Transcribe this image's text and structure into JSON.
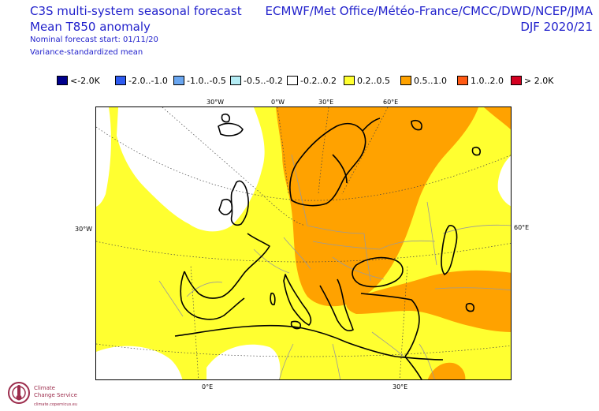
{
  "header": {
    "title": "C3S multi-system seasonal forecast",
    "variable": "Mean T850 anomaly",
    "start": "Nominal forecast start: 01/11/20",
    "method": "Variance-standardized mean",
    "systems": "ECMWF/Met Office/Météo-France/CMCC/DWD/NCEP/JMA",
    "season": "DJF 2020/21"
  },
  "legend": [
    {
      "label": "<-2.0K",
      "color": "#00008c"
    },
    {
      "label": "-2.0..-1.0",
      "color": "#2e5bf0"
    },
    {
      "label": "-1.0..-0.5",
      "color": "#6aa6f0"
    },
    {
      "label": "-0.5..-0.2",
      "color": "#b4ecf4"
    },
    {
      "label": "-0.2..0.2",
      "color": "#ffffff"
    },
    {
      "label": "0.2..0.5",
      "color": "#ffff30"
    },
    {
      "label": "0.5..1.0",
      "color": "#ffa200"
    },
    {
      "label": "1.0..2.0",
      "color": "#ff5a14"
    },
    {
      "label": "> 2.0K",
      "color": "#d40020"
    }
  ],
  "map": {
    "region": "Europe",
    "colors": {
      "land_outline": "#000000",
      "borders": "#9a9a9a",
      "grid": "#444444"
    }
  },
  "labels": {
    "top_30w": "30°W",
    "top_0w": "0°W",
    "top_30e": "30°E",
    "top_60e": "60°E",
    "left_30w": "30°W",
    "right_60e": "60°E",
    "bottom_0e": "0°E",
    "bottom_30e": "30°E"
  },
  "logo": {
    "line1": "Climate",
    "line2": "Change Service",
    "line3": "climate.copernicus.eu"
  }
}
